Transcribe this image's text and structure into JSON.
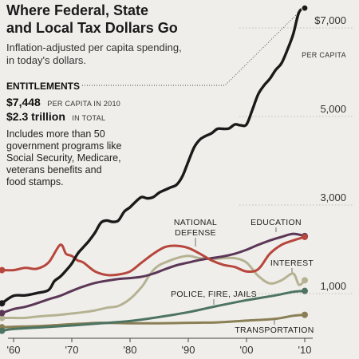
{
  "title_lines": [
    "Where Federal, State",
    "and Local Tax Dollars Go"
  ],
  "subtitle_lines": [
    "Inflation-adjusted per capita spending,",
    "in today's dollars."
  ],
  "entitlements": {
    "heading": "ENTITLEMENTS",
    "per_capita_value": "$7,448",
    "per_capita_note": "PER CAPITA IN 2010",
    "total_value": "$2.3 trillion",
    "total_note": "IN TOTAL",
    "description_lines": [
      "Includes more than 50",
      "government programs like",
      "Social Security, Medicare,",
      "veterans benefits and",
      "food stamps."
    ]
  },
  "chart_data": {
    "type": "line",
    "x_ticks": [
      "'60",
      "'70",
      "'80",
      "'90",
      "'00",
      "'10"
    ],
    "y_ticks": [
      "$7,000",
      "5,000",
      "3,000",
      "1,000"
    ],
    "y_tick_values": [
      7000,
      5000,
      3000,
      1000
    ],
    "y_unit": "PER CAPITA",
    "xlim": [
      1958,
      2012
    ],
    "ylim": [
      0,
      7800
    ],
    "grid": true,
    "series": [
      {
        "name": "ENTITLEMENTS",
        "color": "#1a1a1a",
        "x": [
          1958,
          1960,
          1962,
          1964,
          1966,
          1967,
          1968,
          1969,
          1970,
          1971,
          1972,
          1973,
          1974,
          1975,
          1976,
          1977,
          1978,
          1979,
          1980,
          1981,
          1982,
          1983,
          1984,
          1985,
          1986,
          1987,
          1988,
          1989,
          1990,
          1991,
          1992,
          1993,
          1994,
          1995,
          1996,
          1997,
          1998,
          1999,
          2000,
          2001,
          2002,
          2003,
          2004,
          2005,
          2006,
          2007,
          2008,
          2009,
          2010
        ],
        "values": [
          780,
          950,
          960,
          1010,
          1080,
          1280,
          1380,
          1520,
          1680,
          1900,
          2050,
          2200,
          2380,
          2600,
          2650,
          2620,
          2650,
          2850,
          2950,
          3080,
          3180,
          3150,
          3180,
          3280,
          3340,
          3400,
          3460,
          3650,
          3980,
          4300,
          4480,
          4560,
          4620,
          4720,
          4720,
          4730,
          4820,
          4800,
          4820,
          5150,
          5500,
          5700,
          5850,
          6050,
          6200,
          6500,
          6850,
          7350,
          7448
        ]
      },
      {
        "name": "NATIONAL DEFENSE",
        "color": "#b7463d",
        "x": [
          1958,
          1960,
          1962,
          1964,
          1966,
          1968,
          1969,
          1970,
          1971,
          1972,
          1974,
          1976,
          1978,
          1980,
          1982,
          1984,
          1986,
          1988,
          1990,
          1992,
          1994,
          1996,
          1998,
          2000,
          2002,
          2004,
          2006,
          2008,
          2010
        ],
        "values": [
          1530,
          1530,
          1580,
          1560,
          1700,
          2100,
          1900,
          1850,
          1750,
          1700,
          1500,
          1420,
          1430,
          1500,
          1700,
          1900,
          2050,
          2080,
          2030,
          1900,
          1750,
          1650,
          1600,
          1500,
          1550,
          1900,
          2100,
          2200,
          2280
        ]
      },
      {
        "name": "EDUCATION",
        "color": "#5b3757",
        "x": [
          1958,
          1960,
          1962,
          1964,
          1966,
          1968,
          1970,
          1972,
          1974,
          1976,
          1978,
          1980,
          1982,
          1984,
          1986,
          1988,
          1990,
          1992,
          1994,
          1996,
          1998,
          2000,
          2002,
          2004,
          2006,
          2008,
          2010
        ],
        "values": [
          560,
          650,
          700,
          780,
          870,
          950,
          1060,
          1160,
          1240,
          1290,
          1330,
          1350,
          1380,
          1450,
          1550,
          1640,
          1700,
          1760,
          1800,
          1840,
          1900,
          1990,
          2100,
          2200,
          2280,
          2350,
          2300
        ]
      },
      {
        "name": "INTEREST",
        "color": "#b5b293",
        "x": [
          1958,
          1960,
          1962,
          1964,
          1966,
          1968,
          1970,
          1972,
          1974,
          1976,
          1978,
          1980,
          1982,
          1983,
          1984,
          1985,
          1986,
          1988,
          1990,
          1992,
          1994,
          1996,
          1998,
          2000,
          2002,
          2004,
          2006,
          2008,
          2009,
          2010
        ],
        "values": [
          450,
          450,
          450,
          480,
          500,
          520,
          550,
          580,
          620,
          680,
          720,
          880,
          1150,
          1350,
          1530,
          1640,
          1700,
          1800,
          1850,
          1800,
          1780,
          1800,
          1800,
          1700,
          1400,
          1230,
          1300,
          1450,
          1200,
          1300
        ]
      },
      {
        "name": "POLICE, FIRE, JAILS",
        "color": "#4d7463",
        "x": [
          1958,
          1960,
          1965,
          1970,
          1975,
          1980,
          1985,
          1990,
          1995,
          2000,
          2005,
          2008,
          2010
        ],
        "values": [
          160,
          200,
          240,
          280,
          330,
          380,
          470,
          580,
          720,
          850,
          960,
          1040,
          1060
        ]
      },
      {
        "name": "TRANSPORTATION",
        "color": "#8a7f55",
        "x": [
          1958,
          1960,
          1965,
          1970,
          1973,
          1975,
          1980,
          1985,
          1990,
          1995,
          2000,
          2005,
          2008,
          2010
        ],
        "values": [
          240,
          250,
          270,
          310,
          330,
          340,
          330,
          330,
          340,
          350,
          390,
          430,
          500,
          520
        ]
      }
    ]
  }
}
